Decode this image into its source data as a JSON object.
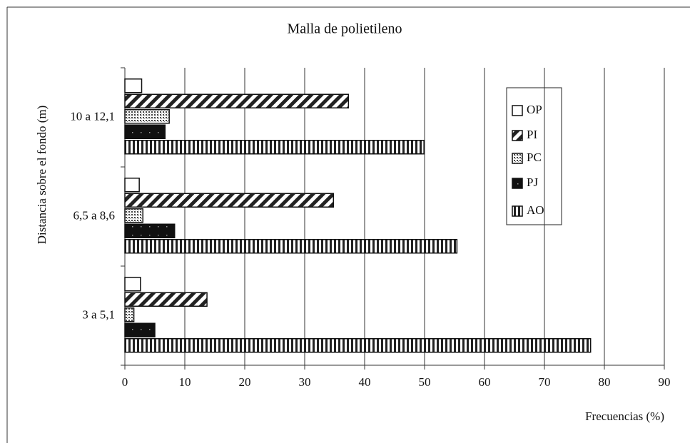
{
  "chart_data": {
    "type": "hbar",
    "title": "Malla de polietileno",
    "x_label": "Frecuencias (%)",
    "y_label": "Distancia sobre el fondo (m)",
    "categories": [
      "3 a 5,1",
      "6,5 a 8,6",
      "10 a 12,1"
    ],
    "series": [
      {
        "name": "OP",
        "color": "#ffffff",
        "pattern": "hollow",
        "values": [
          2.6,
          2.4,
          2.8
        ]
      },
      {
        "name": "PI",
        "color": "#222222",
        "pattern": "diagonal",
        "values": [
          13.7,
          34.8,
          37.3
        ]
      },
      {
        "name": "PC",
        "color": "#555555",
        "pattern": "dots",
        "values": [
          1.5,
          3.0,
          7.4
        ]
      },
      {
        "name": "PJ",
        "color": "#111111",
        "pattern": "dark",
        "values": [
          5.0,
          8.3,
          6.7
        ]
      },
      {
        "name": "AO",
        "color": "#222222",
        "pattern": "vertical",
        "values": [
          77.7,
          55.4,
          49.9
        ]
      }
    ],
    "xlim": [
      0,
      90
    ],
    "xticks": [
      0,
      10,
      20,
      30,
      40,
      50,
      60,
      70,
      80,
      90
    ],
    "grid": true,
    "legend": "upper right"
  }
}
